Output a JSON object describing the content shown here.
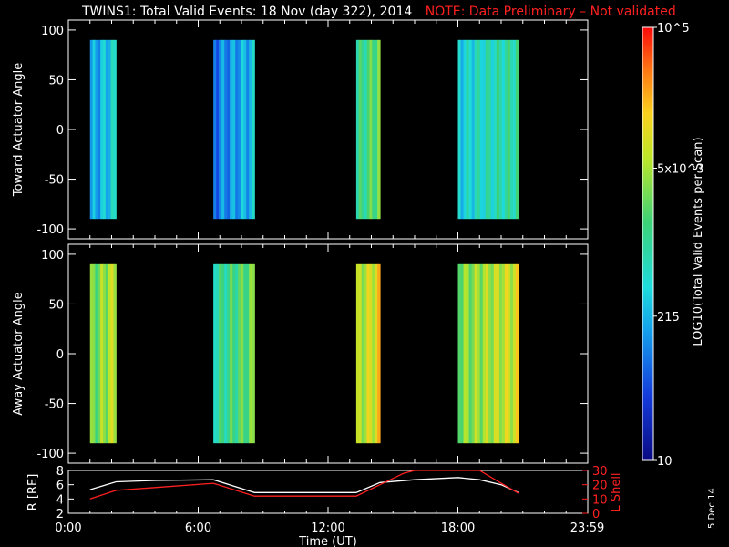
{
  "title": {
    "main": "TWINS1: Total Valid Events: 18 Nov (day 322), 2014",
    "note": "NOTE: Data Preliminary – Not validated",
    "note_color": "#ff2020"
  },
  "colorbar": {
    "label": "LOG10(Total Valid Events per Scan)",
    "ticks": [
      "10",
      "215",
      "5x10^3",
      "10^5"
    ],
    "tick_values": [
      10,
      215,
      5000,
      100000
    ],
    "scale": "log",
    "range": [
      10,
      100000
    ]
  },
  "stamp": "5 Dec 14",
  "chart_data": [
    {
      "type": "heatmap",
      "panel": "top",
      "ylabel": "Toward Actuator Angle",
      "ylim": [
        -110,
        110
      ],
      "yticks": [
        100,
        50,
        0,
        -50,
        -100
      ],
      "x_unit": "hours UT",
      "data_ylim": [
        -90,
        90
      ],
      "intervals": [
        {
          "start": 1.0,
          "end": 2.2,
          "level": 0.35
        },
        {
          "start": 6.7,
          "end": 8.6,
          "level": 0.3
        },
        {
          "start": 13.3,
          "end": 14.4,
          "level": 0.55
        },
        {
          "start": 18.0,
          "end": 20.8,
          "level": 0.45
        }
      ]
    },
    {
      "type": "heatmap",
      "panel": "middle",
      "ylabel": "Away Actuator Angle",
      "ylim": [
        -110,
        110
      ],
      "yticks": [
        100,
        50,
        0,
        -50,
        -100
      ],
      "x_unit": "hours UT",
      "data_ylim": [
        -90,
        90
      ],
      "intervals": [
        {
          "start": 1.0,
          "end": 2.2,
          "level": 0.65
        },
        {
          "start": 6.7,
          "end": 8.6,
          "level": 0.55
        },
        {
          "start": 13.3,
          "end": 14.4,
          "level": 0.72
        },
        {
          "start": 18.0,
          "end": 20.8,
          "level": 0.68
        }
      ]
    },
    {
      "type": "line",
      "panel": "bottom",
      "xlabel": "Time (UT)",
      "x_ticklabels": [
        "0:00",
        "6:00",
        "12:00",
        "18:00",
        "23:59"
      ],
      "x_tickvalues": [
        0,
        6,
        12,
        18,
        23.98
      ],
      "ylabel_left": "R [RE]",
      "ylim_left": [
        2,
        8
      ],
      "yticks_left": [
        2,
        4,
        6,
        8
      ],
      "ylabel_right": "L Shell",
      "ylim_right": [
        0,
        30
      ],
      "yticks_right": [
        0,
        10,
        20,
        30
      ],
      "series": [
        {
          "axis": "left",
          "color": "#ffffff",
          "x": [
            1.0,
            2.2,
            4.0,
            6.7,
            8.6,
            10.5,
            12.0,
            13.3,
            14.4,
            16.0,
            18.0,
            19.0,
            20.0,
            20.8
          ],
          "y": [
            5.3,
            6.4,
            6.6,
            6.7,
            4.9,
            4.9,
            4.9,
            4.9,
            6.3,
            6.7,
            7.0,
            6.7,
            6.0,
            4.9
          ]
        },
        {
          "axis": "right",
          "color": "#ff2020",
          "x": [
            1.0,
            2.2,
            4.0,
            6.7,
            8.6,
            10.5,
            12.0,
            13.3,
            14.4,
            15.5,
            16.0,
            19.0,
            20.0,
            20.8
          ],
          "y": [
            10,
            16,
            18,
            21,
            12,
            12,
            12,
            12,
            20,
            28,
            30,
            30,
            21,
            14
          ]
        }
      ]
    }
  ]
}
